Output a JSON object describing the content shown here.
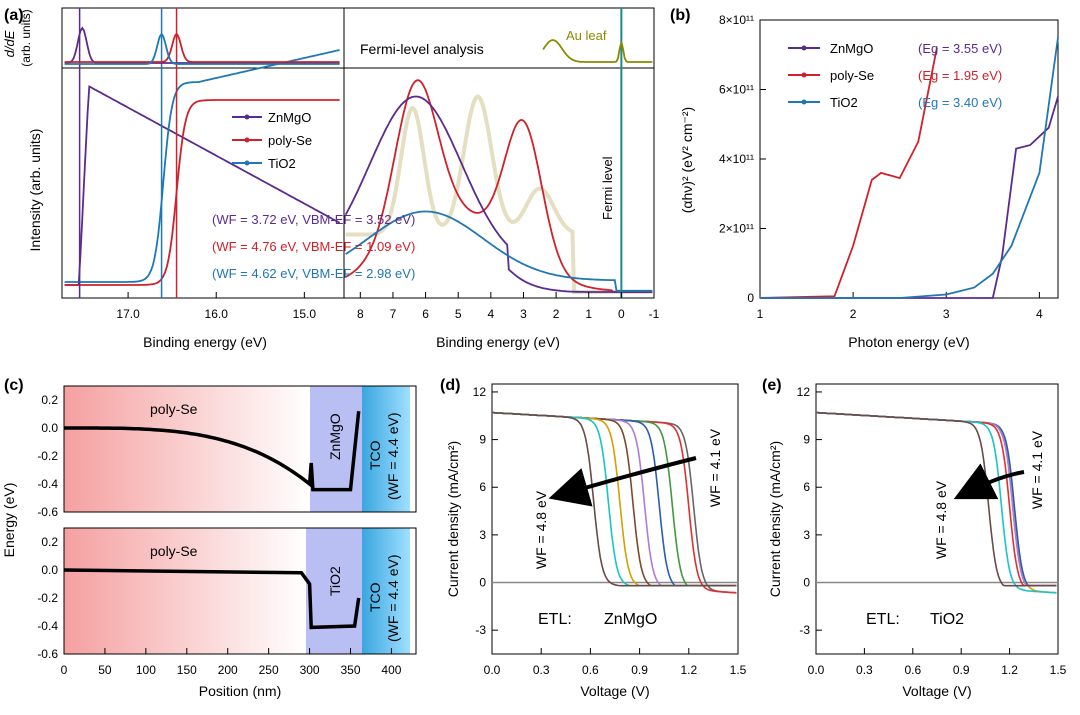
{
  "colors": {
    "ZnMgO": "#5b2a8f",
    "polySe": "#d0202a",
    "TiO2": "#1f77b4",
    "Au": "#8b8b00",
    "grey": "#888888",
    "cyan": "#18c4c8"
  },
  "panel_labels": {
    "a": "(a)",
    "b": "(b)",
    "c": "(c)",
    "d": "(d)",
    "e": "(e)"
  },
  "panel_a": {
    "top_ylabel_1": "d/dE",
    "top_ylabel_2": "(arb. units)",
    "ylabel": "Intensity (arb. units)",
    "xlabel": "Binding energy (eV)",
    "fermi_title": "Fermi-level analysis",
    "au_leaf": "Au leaf",
    "fermi_level": "Fermi level",
    "legend": [
      "ZnMgO",
      "poly-Se",
      "TiO2"
    ],
    "annotations": [
      {
        "text": "(WF = 3.72 eV, VBM-EF = 3.52 eV)",
        "series": "ZnMgO"
      },
      {
        "text": "(WF = 4.76 eV, VBM-EF = 1.09 eV)",
        "series": "poly-Se"
      },
      {
        "text": "(WF = 4.62 eV, VBM-EF = 2.98 eV)",
        "series": "TiO2"
      }
    ],
    "left_ticks": [
      "17.0",
      "16.0",
      "15.0"
    ],
    "right_ticks": [
      "8",
      "7",
      "6",
      "5",
      "4",
      "3",
      "2",
      "1",
      "0",
      "-1"
    ]
  },
  "panel_b": {
    "ylabel": "(αhν)² (eV² cm⁻²)",
    "xlabel": "Photon energy (eV)",
    "yticks": [
      "0",
      "2×10¹¹",
      "4×10¹¹",
      "6×10¹¹",
      "8×10¹¹"
    ],
    "xticks": [
      "1",
      "2",
      "3",
      "4"
    ],
    "legend": [
      "ZnMgO",
      "poly-Se",
      "TiO2"
    ],
    "eg": [
      "(Eg = 3.55 eV)",
      "(Eg = 1.95 eV)",
      "(Eg = 3.40 eV)"
    ]
  },
  "panel_c": {
    "ylabel": "Energy (eV)",
    "xlabel": "Position (nm)",
    "yticks": [
      "0.2",
      "0.0",
      "-0.2",
      "-0.4",
      "-0.6"
    ],
    "xticks": [
      "0",
      "50",
      "100",
      "150",
      "200",
      "250",
      "300",
      "350",
      "400"
    ],
    "top_labels": {
      "absorber": "poly-Se",
      "etl": "ZnMgO",
      "tco1": "TCO",
      "tco2": "(WF = 4.4 eV)"
    },
    "bottom_labels": {
      "absorber": "poly-Se",
      "etl": "TiO2",
      "tco1": "TCO",
      "tco2": "(WF = 4.4 eV)"
    }
  },
  "panel_d": {
    "ylabel": "Current density (mA/cm²)",
    "xlabel": "Voltage (V)",
    "yticks": [
      "12",
      "9",
      "6",
      "3",
      "0",
      "-3"
    ],
    "xticks": [
      "0.0",
      "0.3",
      "0.6",
      "0.9",
      "1.2",
      "1.5"
    ],
    "wf_low": "WF = 4.1 eV",
    "wf_high": "WF = 4.8 eV",
    "etl_label": "ETL:",
    "etl_name": "ZnMgO"
  },
  "panel_e": {
    "ylabel": "Current density (mA/cm²)",
    "xlabel": "Voltage (V)",
    "yticks": [
      "12",
      "9",
      "6",
      "3",
      "0",
      "-3"
    ],
    "xticks": [
      "0.0",
      "0.3",
      "0.6",
      "0.9",
      "1.2",
      "1.5"
    ],
    "wf_low": "WF = 4.1 eV",
    "wf_high": "WF = 4.8 eV",
    "etl_label": "ETL:",
    "etl_name": "TiO2"
  },
  "chart_data": [
    {
      "type": "line",
      "name": "UPS spectra",
      "xlabel": "Binding energy (eV)",
      "ylabel": "Intensity (arb. units)",
      "series": [
        {
          "name": "ZnMgO",
          "cutoff": 17.55,
          "peak": 6.3,
          "vbm": 3.52,
          "wf": 3.72
        },
        {
          "name": "poly-Se",
          "cutoff": 16.45,
          "peak_values": [
            6.3,
            3.0
          ],
          "vbm": 1.09,
          "wf": 4.76
        },
        {
          "name": "TiO2",
          "cutoff": 16.6,
          "vbm": 2.98,
          "wf": 4.62
        }
      ]
    },
    {
      "type": "line",
      "name": "Tauc plot",
      "xlabel": "Photon energy (eV)",
      "ylabel": "(αhν)² (eV² cm⁻²)",
      "xlim": [
        1,
        4.2
      ],
      "ylim": [
        0,
        800000000000.0
      ],
      "series": [
        {
          "name": "ZnMgO",
          "Eg": 3.55,
          "x": [
            3.5,
            3.6,
            3.75,
            3.9,
            4.1,
            4.2
          ],
          "y": [
            0,
            120000000000.0,
            430000000000.0,
            440000000000.0,
            490000000000.0,
            580000000000.0
          ]
        },
        {
          "name": "poly-Se",
          "Eg": 1.95,
          "x": [
            1.8,
            2.0,
            2.2,
            2.3,
            2.5,
            2.7,
            2.9
          ],
          "y": [
            5000000000.0,
            150000000000.0,
            340000000000.0,
            360000000000.0,
            345000000000.0,
            450000000000.0,
            720000000000.0
          ]
        },
        {
          "name": "TiO2",
          "Eg": 3.4,
          "x": [
            2.5,
            3.0,
            3.3,
            3.5,
            3.7,
            4.0,
            4.2
          ],
          "y": [
            0,
            10000000000.0,
            30000000000.0,
            70000000000.0,
            150000000000.0,
            360000000000.0,
            750000000000.0
          ]
        }
      ]
    },
    {
      "type": "line",
      "name": "Band diagram",
      "xlabel": "Position (nm)",
      "ylabel": "Energy (eV)",
      "xlim": [
        0,
        430
      ],
      "ylim": [
        -0.6,
        0.3
      ]
    },
    {
      "type": "line",
      "name": "JV ZnMgO",
      "xlabel": "Voltage (V)",
      "ylabel": "Current density (mA/cm²)",
      "xlim": [
        0,
        1.5
      ],
      "ylim": [
        -4.5,
        12
      ],
      "series_voc": [
        1.28,
        1.25,
        1.15,
        1.07,
        0.98,
        0.91,
        0.83,
        0.76,
        0.67
      ],
      "jsc": 10.7
    },
    {
      "type": "line",
      "name": "JV TiO2",
      "xlabel": "Voltage (V)",
      "ylabel": "Current density (mA/cm²)",
      "xlim": [
        0,
        1.5
      ],
      "ylim": [
        -4.5,
        12
      ],
      "series_voc": [
        1.28,
        1.28,
        1.27,
        1.27,
        1.25,
        1.2,
        1.12
      ],
      "jsc": 10.7
    }
  ]
}
